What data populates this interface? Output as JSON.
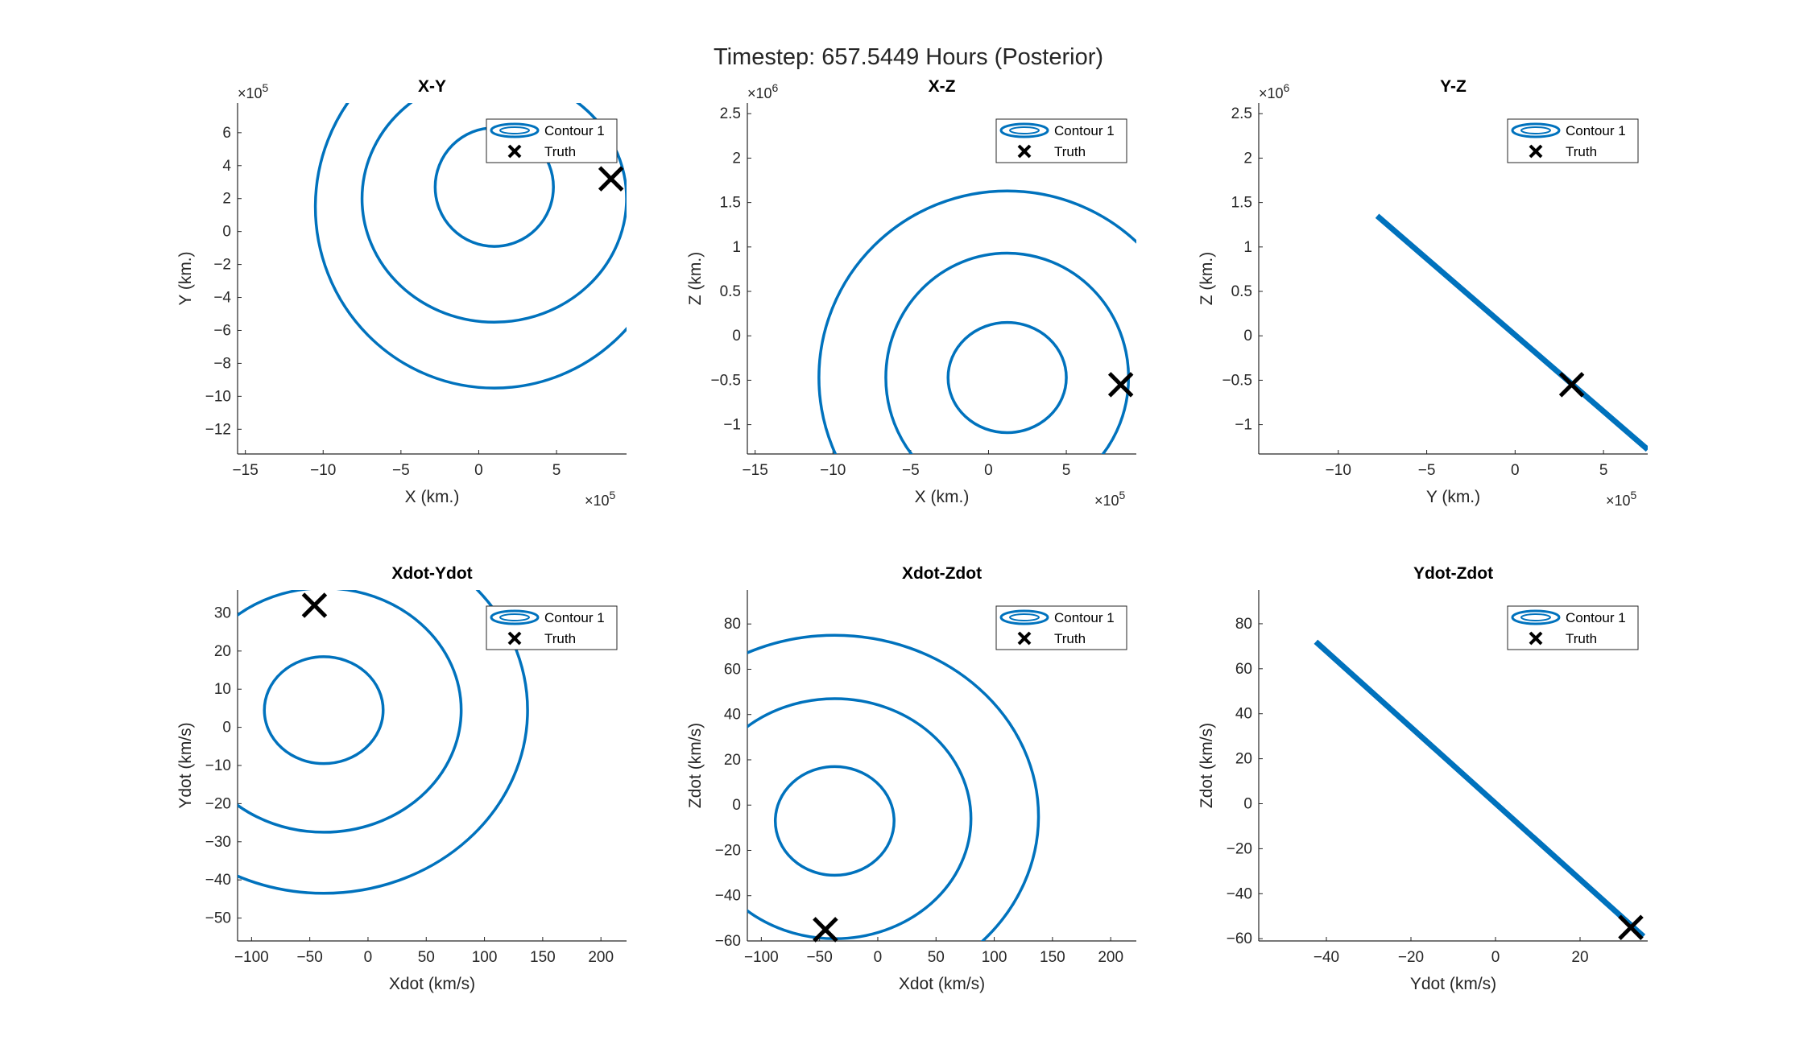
{
  "figure": {
    "title": "Timestep: 657.5449 Hours (Posterior)",
    "colors": {
      "contour": "#0072BD",
      "truth": "#000000",
      "axis": "#262626"
    },
    "legend": {
      "contour_label": "Contour 1",
      "truth_label": "Truth",
      "placement": "top-right"
    }
  },
  "chart_data": [
    {
      "type": "contour",
      "title": "X-Y",
      "xlabel": "X (km.)",
      "ylabel": "Y (km.)",
      "x_exponent": "5",
      "y_exponent": "5",
      "xlim": [
        -15.5,
        9.5
      ],
      "ylim": [
        -13.5,
        7.8
      ],
      "xticks": [
        -15,
        -10,
        -5,
        0,
        5
      ],
      "yticks": [
        -12,
        -10,
        -8,
        -6,
        -4,
        -2,
        0,
        2,
        4,
        6
      ],
      "contours": [
        {
          "cx": 1.0,
          "cy": 2.7,
          "rx": 3.8,
          "ry": 3.6
        },
        {
          "cx": 1.0,
          "cy": 2.0,
          "rx": 8.5,
          "ry": 7.5
        },
        {
          "cx": 1.0,
          "cy": 1.5,
          "rx": 11.5,
          "ry": 11.0
        }
      ],
      "truth": {
        "x": 8.5,
        "y": 3.2
      }
    },
    {
      "type": "contour",
      "title": "X-Z",
      "xlabel": "X (km.)",
      "ylabel": "Z (km.)",
      "x_exponent": "5",
      "y_exponent": "6",
      "xlim": [
        -15.5,
        9.5
      ],
      "ylim": [
        -1.33,
        2.62
      ],
      "xticks": [
        -15,
        -10,
        -5,
        0,
        5
      ],
      "yticks": [
        -1,
        -0.5,
        0,
        0.5,
        1,
        1.5,
        2,
        2.5
      ],
      "contours": [
        {
          "cx": 1.2,
          "cy": -0.47,
          "rx": 3.8,
          "ry": 0.62
        },
        {
          "cx": 1.2,
          "cy": -0.47,
          "rx": 7.8,
          "ry": 1.4
        },
        {
          "cx": 1.2,
          "cy": -0.47,
          "rx": 12.1,
          "ry": 2.1
        }
      ],
      "truth": {
        "x": 8.5,
        "y": -0.55
      }
    },
    {
      "type": "contour-degenerate",
      "title": "Y-Z",
      "xlabel": "Y (km.)",
      "ylabel": "Z (km.)",
      "x_exponent": "5",
      "y_exponent": "6",
      "xlim": [
        -14.5,
        7.5
      ],
      "ylim": [
        -1.33,
        2.62
      ],
      "xticks": [
        -10,
        -5,
        0,
        5
      ],
      "yticks": [
        -1,
        -0.5,
        0,
        0.5,
        1,
        1.5,
        2,
        2.5
      ],
      "line": {
        "x0": -7.8,
        "y0": 1.35,
        "x1": 7.5,
        "y1": -1.28
      },
      "truth": {
        "x": 3.2,
        "y": -0.55
      }
    },
    {
      "type": "contour",
      "title": "Xdot-Ydot",
      "xlabel": "Xdot (km/s)",
      "ylabel": "Ydot (km/s)",
      "xlim": [
        -112,
        222
      ],
      "ylim": [
        -56,
        36
      ],
      "xticks": [
        -100,
        -50,
        0,
        50,
        100,
        150,
        200
      ],
      "yticks": [
        -50,
        -40,
        -30,
        -20,
        -10,
        0,
        10,
        20,
        30
      ],
      "contours": [
        {
          "cx": -38,
          "cy": 4.5,
          "rx": 51,
          "ry": 14
        },
        {
          "cx": -38,
          "cy": 4.5,
          "rx": 118,
          "ry": 32
        },
        {
          "cx": -38,
          "cy": 4.5,
          "rx": 175,
          "ry": 48
        }
      ],
      "truth": {
        "x": -46,
        "y": 32
      }
    },
    {
      "type": "contour",
      "title": "Xdot-Zdot",
      "xlabel": "Xdot (km/s)",
      "ylabel": "Zdot (km/s)",
      "xlim": [
        -112,
        222
      ],
      "ylim": [
        -60,
        95
      ],
      "xticks": [
        -100,
        -50,
        0,
        50,
        100,
        150,
        200
      ],
      "yticks": [
        -60,
        -40,
        -20,
        0,
        20,
        40,
        60,
        80
      ],
      "contours": [
        {
          "cx": -37,
          "cy": -7,
          "rx": 51,
          "ry": 24
        },
        {
          "cx": -37,
          "cy": -6,
          "rx": 117,
          "ry": 53
        },
        {
          "cx": -37,
          "cy": -5,
          "rx": 175,
          "ry": 80
        }
      ],
      "truth": {
        "x": -45,
        "y": -55
      }
    },
    {
      "type": "contour-degenerate",
      "title": "Ydot-Zdot",
      "xlabel": "Ydot (km/s)",
      "ylabel": "Zdot (km/s)",
      "xlim": [
        -56,
        36
      ],
      "ylim": [
        -61,
        95
      ],
      "xticks": [
        -40,
        -20,
        0,
        20
      ],
      "yticks": [
        -60,
        -40,
        -20,
        0,
        20,
        40,
        60,
        80
      ],
      "line": {
        "x0": -42.5,
        "y0": 72,
        "x1": 35,
        "y1": -59
      },
      "truth": {
        "x": 32,
        "y": -55
      }
    }
  ]
}
